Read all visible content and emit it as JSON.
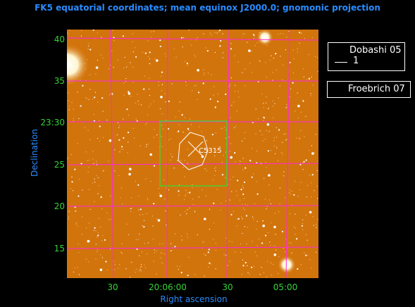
{
  "title": "FK5 equatorial coordinates; mean equinox J2000.0; gnomonic projection",
  "axes": {
    "xlabel": "Right ascension",
    "ylabel": "Declination",
    "xticks": [
      "30",
      "20:06:00",
      "30",
      "05:00"
    ],
    "yticks": [
      "40",
      "35",
      "23:30",
      "25",
      "20",
      "15"
    ]
  },
  "legend": {
    "box1_title": "Dobashi 05",
    "box1_entry": "1",
    "box2_title": "Froebrich 07"
  },
  "object_label": "C5315",
  "colors": {
    "title": "#2a8cff",
    "ticks": "#35d435",
    "grid": "#ff28e0",
    "field_box": "#4ccc33",
    "sky": "#d2740c",
    "region": "#ffffff"
  }
}
